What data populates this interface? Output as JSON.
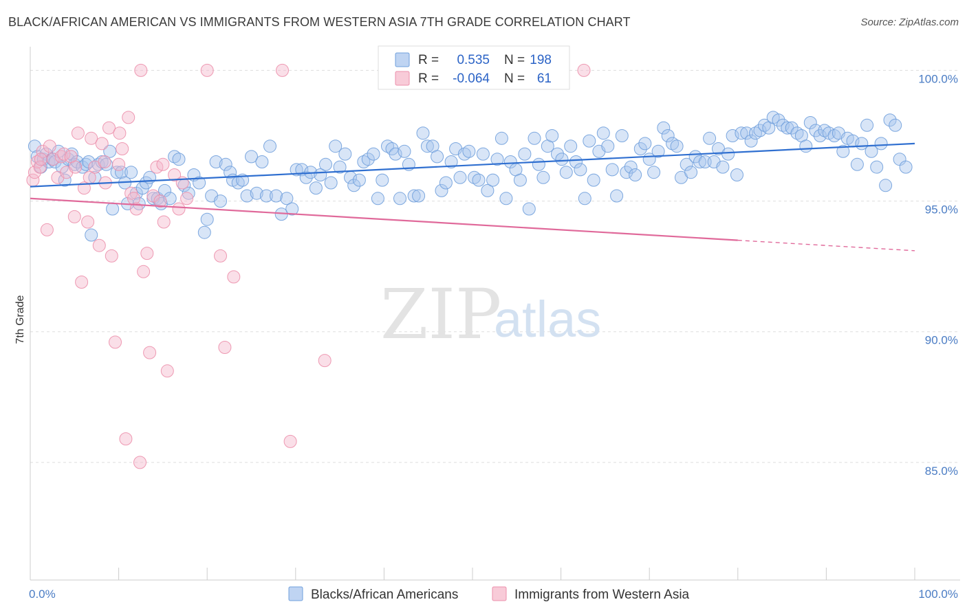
{
  "header": {
    "title": "BLACK/AFRICAN AMERICAN VS IMMIGRANTS FROM WESTERN ASIA 7TH GRADE CORRELATION CHART",
    "source": "Source: ZipAtlas.com"
  },
  "watermark": {
    "zip": "ZIP",
    "atlas": "atlas"
  },
  "legend": {
    "rows": [
      {
        "r_label": "R =",
        "r_value": "0.535",
        "n_label": "N =",
        "n_value": "198",
        "color": "#a9c6ee"
      },
      {
        "r_label": "R =",
        "r_value": "-0.064",
        "n_label": "N =",
        "n_value": "61",
        "color": "#f5b9cb"
      }
    ]
  },
  "bottom_legend": {
    "items": [
      {
        "label": "Blacks/African Americans",
        "color": "#a9c6ee"
      },
      {
        "label": "Immigrants from Western Asia",
        "color": "#f5b9cb"
      }
    ]
  },
  "chart_data": {
    "type": "scatter",
    "title": "BLACK/AFRICAN AMERICAN VS IMMIGRANTS FROM WESTERN ASIA 7TH GRADE CORRELATION CHART",
    "xlabel": "",
    "ylabel": "7th Grade",
    "xlim": [
      0,
      100
    ],
    "ylim": [
      80.5,
      100.8
    ],
    "x_tick_labels": [
      "0.0%",
      "100.0%"
    ],
    "y_ticks": [
      100,
      95,
      90,
      85
    ],
    "y_tick_labels": [
      "100.0%",
      "95.0%",
      "90.0%",
      "85.0%"
    ],
    "grid": true,
    "legend_position": "top-center",
    "series": [
      {
        "name": "Blacks/African Americans",
        "color": "#6f9fdc",
        "fill": "#a9c6ee",
        "trend": {
          "x": [
            0,
            100
          ],
          "y": [
            95.55,
            97.2
          ],
          "color": "#2f6fd0"
        },
        "points": [
          [
            0.5,
            97.1
          ],
          [
            0.8,
            96.7
          ],
          [
            1.2,
            96.3
          ],
          [
            1.5,
            96.6
          ],
          [
            1.8,
            96.8
          ],
          [
            2.1,
            96.5
          ],
          [
            2.5,
            96.6
          ],
          [
            2.8,
            96.5
          ],
          [
            3.2,
            96.9
          ],
          [
            3.6,
            96.3
          ],
          [
            3.9,
            95.8
          ],
          [
            4.3,
            96.6
          ],
          [
            4.7,
            96.8
          ],
          [
            5.0,
            96.4
          ],
          [
            5.3,
            96.5
          ],
          [
            5.9,
            96.3
          ],
          [
            6.3,
            96.4
          ],
          [
            6.6,
            96.5
          ],
          [
            6.9,
            93.7
          ],
          [
            7.3,
            95.9
          ],
          [
            7.7,
            96.4
          ],
          [
            8.1,
            96.5
          ],
          [
            8.6,
            96.4
          ],
          [
            9.0,
            96.9
          ],
          [
            9.3,
            94.7
          ],
          [
            9.8,
            96.1
          ],
          [
            10.3,
            96.1
          ],
          [
            10.7,
            95.7
          ],
          [
            11.0,
            94.9
          ],
          [
            11.4,
            96.1
          ],
          [
            12.0,
            95.3
          ],
          [
            12.3,
            94.9
          ],
          [
            12.7,
            95.5
          ],
          [
            13.1,
            95.7
          ],
          [
            13.5,
            95.9
          ],
          [
            13.9,
            95.1
          ],
          [
            14.4,
            95.1
          ],
          [
            14.8,
            94.9
          ],
          [
            15.2,
            95.4
          ],
          [
            15.8,
            95.1
          ],
          [
            16.3,
            96.7
          ],
          [
            16.8,
            96.6
          ],
          [
            17.4,
            95.6
          ],
          [
            17.9,
            95.3
          ],
          [
            18.5,
            96.0
          ],
          [
            19.1,
            95.7
          ],
          [
            19.7,
            93.8
          ],
          [
            20.0,
            94.3
          ],
          [
            20.5,
            95.2
          ],
          [
            21.0,
            96.5
          ],
          [
            21.5,
            95.0
          ],
          [
            22.1,
            96.4
          ],
          [
            22.6,
            96.1
          ],
          [
            22.9,
            95.8
          ],
          [
            23.5,
            95.7
          ],
          [
            24.0,
            95.8
          ],
          [
            24.5,
            95.2
          ],
          [
            25.0,
            96.7
          ],
          [
            25.6,
            95.3
          ],
          [
            26.2,
            96.5
          ],
          [
            26.7,
            95.2
          ],
          [
            27.1,
            97.1
          ],
          [
            27.8,
            95.2
          ],
          [
            28.4,
            94.5
          ],
          [
            29.0,
            95.1
          ],
          [
            29.6,
            94.7
          ],
          [
            30.1,
            96.2
          ],
          [
            30.7,
            96.2
          ],
          [
            31.2,
            95.9
          ],
          [
            31.7,
            96.1
          ],
          [
            32.3,
            95.5
          ],
          [
            32.8,
            96.0
          ],
          [
            33.4,
            96.4
          ],
          [
            34.0,
            95.7
          ],
          [
            34.5,
            97.1
          ],
          [
            35.0,
            96.3
          ],
          [
            35.6,
            96.8
          ],
          [
            36.2,
            95.9
          ],
          [
            36.6,
            95.6
          ],
          [
            37.2,
            95.8
          ],
          [
            37.7,
            96.5
          ],
          [
            38.2,
            96.6
          ],
          [
            38.8,
            96.8
          ],
          [
            39.3,
            95.1
          ],
          [
            39.8,
            95.8
          ],
          [
            40.4,
            97.1
          ],
          [
            40.9,
            97.0
          ],
          [
            41.3,
            96.8
          ],
          [
            41.8,
            95.1
          ],
          [
            42.3,
            96.9
          ],
          [
            42.8,
            96.4
          ],
          [
            43.4,
            95.2
          ],
          [
            43.9,
            95.2
          ],
          [
            44.4,
            97.6
          ],
          [
            44.9,
            97.1
          ],
          [
            45.5,
            97.1
          ],
          [
            46.0,
            96.7
          ],
          [
            46.5,
            95.4
          ],
          [
            47.0,
            95.7
          ],
          [
            47.6,
            96.5
          ],
          [
            48.1,
            97.0
          ],
          [
            48.6,
            95.9
          ],
          [
            49.1,
            96.8
          ],
          [
            49.6,
            96.9
          ],
          [
            50.2,
            95.9
          ],
          [
            50.7,
            95.8
          ],
          [
            51.2,
            96.8
          ],
          [
            51.7,
            95.4
          ],
          [
            52.3,
            95.8
          ],
          [
            52.8,
            96.6
          ],
          [
            53.3,
            97.4
          ],
          [
            53.8,
            95.1
          ],
          [
            54.3,
            96.5
          ],
          [
            54.9,
            96.2
          ],
          [
            55.4,
            95.8
          ],
          [
            55.9,
            96.8
          ],
          [
            56.4,
            94.7
          ],
          [
            57.0,
            97.4
          ],
          [
            57.5,
            96.4
          ],
          [
            58.0,
            95.9
          ],
          [
            58.5,
            97.1
          ],
          [
            59.0,
            97.5
          ],
          [
            59.6,
            96.8
          ],
          [
            60.1,
            96.6
          ],
          [
            60.6,
            96.1
          ],
          [
            61.1,
            97.1
          ],
          [
            61.7,
            96.5
          ],
          [
            62.2,
            96.2
          ],
          [
            62.7,
            95.1
          ],
          [
            63.2,
            97.3
          ],
          [
            63.7,
            95.8
          ],
          [
            64.3,
            96.9
          ],
          [
            64.8,
            97.6
          ],
          [
            65.3,
            97.1
          ],
          [
            65.8,
            96.2
          ],
          [
            66.3,
            95.2
          ],
          [
            66.9,
            97.5
          ],
          [
            67.4,
            96.1
          ],
          [
            67.9,
            96.3
          ],
          [
            68.4,
            96.0
          ],
          [
            69.0,
            97.0
          ],
          [
            69.5,
            97.2
          ],
          [
            70.0,
            96.6
          ],
          [
            70.5,
            96.1
          ],
          [
            71.0,
            96.9
          ],
          [
            71.6,
            97.8
          ],
          [
            72.1,
            97.5
          ],
          [
            72.6,
            97.2
          ],
          [
            73.1,
            97.1
          ],
          [
            73.6,
            95.9
          ],
          [
            74.2,
            96.4
          ],
          [
            74.7,
            96.1
          ],
          [
            75.2,
            96.7
          ],
          [
            75.7,
            96.5
          ],
          [
            76.3,
            96.5
          ],
          [
            76.8,
            97.4
          ],
          [
            77.3,
            96.5
          ],
          [
            77.8,
            97.0
          ],
          [
            78.3,
            96.3
          ],
          [
            78.9,
            96.8
          ],
          [
            79.4,
            97.5
          ],
          [
            79.9,
            96.0
          ],
          [
            80.4,
            97.6
          ],
          [
            81.0,
            97.6
          ],
          [
            81.5,
            97.3
          ],
          [
            82.0,
            97.6
          ],
          [
            82.5,
            97.7
          ],
          [
            83.0,
            97.9
          ],
          [
            83.5,
            97.8
          ],
          [
            84.0,
            98.2
          ],
          [
            84.6,
            98.1
          ],
          [
            85.1,
            97.9
          ],
          [
            85.6,
            97.8
          ],
          [
            86.1,
            97.8
          ],
          [
            86.7,
            97.6
          ],
          [
            87.2,
            97.5
          ],
          [
            87.7,
            97.1
          ],
          [
            88.2,
            98.0
          ],
          [
            88.8,
            97.7
          ],
          [
            89.3,
            97.5
          ],
          [
            89.8,
            97.7
          ],
          [
            90.3,
            97.6
          ],
          [
            90.9,
            97.5
          ],
          [
            91.4,
            97.6
          ],
          [
            91.9,
            96.9
          ],
          [
            92.4,
            97.4
          ],
          [
            93.0,
            97.3
          ],
          [
            93.5,
            96.4
          ],
          [
            94.0,
            97.2
          ],
          [
            94.6,
            97.9
          ],
          [
            95.1,
            96.9
          ],
          [
            95.7,
            96.3
          ],
          [
            96.2,
            97.2
          ],
          [
            96.7,
            95.6
          ],
          [
            97.2,
            98.1
          ],
          [
            97.8,
            97.9
          ],
          [
            98.3,
            96.6
          ],
          [
            99.0,
            96.3
          ]
        ]
      },
      {
        "name": "Immigrants from Western Asia",
        "color": "#ec8fab",
        "fill": "#f5b9cb",
        "trend": {
          "x": [
            0,
            100
          ],
          "y": [
            95.1,
            93.1
          ],
          "solid_until_x": 80,
          "color": "#e0699a"
        },
        "points": [
          [
            0.3,
            95.8
          ],
          [
            0.5,
            96.1
          ],
          [
            0.8,
            96.5
          ],
          [
            1.1,
            96.3
          ],
          [
            1.4,
            96.9
          ],
          [
            1.9,
            93.9
          ],
          [
            2.2,
            97.1
          ],
          [
            2.6,
            96.6
          ],
          [
            3.1,
            95.9
          ],
          [
            3.5,
            96.7
          ],
          [
            3.8,
            96.8
          ],
          [
            4.1,
            96.1
          ],
          [
            4.6,
            96.7
          ],
          [
            5.0,
            94.4
          ],
          [
            5.4,
            97.6
          ],
          [
            5.8,
            91.9
          ],
          [
            6.1,
            95.5
          ],
          [
            6.5,
            94.2
          ],
          [
            6.9,
            97.4
          ],
          [
            7.3,
            96.3
          ],
          [
            7.8,
            93.3
          ],
          [
            8.1,
            97.2
          ],
          [
            8.5,
            95.7
          ],
          [
            8.9,
            97.8
          ],
          [
            9.2,
            92.9
          ],
          [
            9.6,
            89.6
          ],
          [
            10.0,
            96.4
          ],
          [
            10.4,
            97.0
          ],
          [
            10.8,
            85.9
          ],
          [
            11.1,
            98.2
          ],
          [
            11.4,
            95.3
          ],
          [
            11.7,
            95.1
          ],
          [
            12.0,
            94.7
          ],
          [
            12.4,
            85.0
          ],
          [
            12.8,
            92.3
          ],
          [
            13.2,
            93.0
          ],
          [
            13.5,
            89.2
          ],
          [
            13.9,
            95.2
          ],
          [
            14.3,
            96.3
          ],
          [
            14.7,
            95.0
          ],
          [
            15.1,
            94.2
          ],
          [
            15.5,
            88.5
          ],
          [
            12.5,
            100.0
          ],
          [
            16.3,
            96.0
          ],
          [
            16.8,
            94.7
          ],
          [
            17.2,
            95.7
          ],
          [
            17.7,
            95.1
          ],
          [
            20.0,
            100.0
          ],
          [
            21.5,
            92.9
          ],
          [
            22.0,
            89.4
          ],
          [
            23.0,
            92.1
          ],
          [
            28.5,
            100.0
          ],
          [
            29.4,
            85.8
          ],
          [
            33.3,
            88.9
          ],
          [
            10.1,
            97.6
          ],
          [
            15.0,
            96.4
          ],
          [
            5.1,
            96.3
          ],
          [
            6.7,
            95.9
          ],
          [
            8.4,
            96.5
          ],
          [
            62.6,
            100.0
          ],
          [
            1.2,
            96.6
          ]
        ]
      }
    ]
  }
}
